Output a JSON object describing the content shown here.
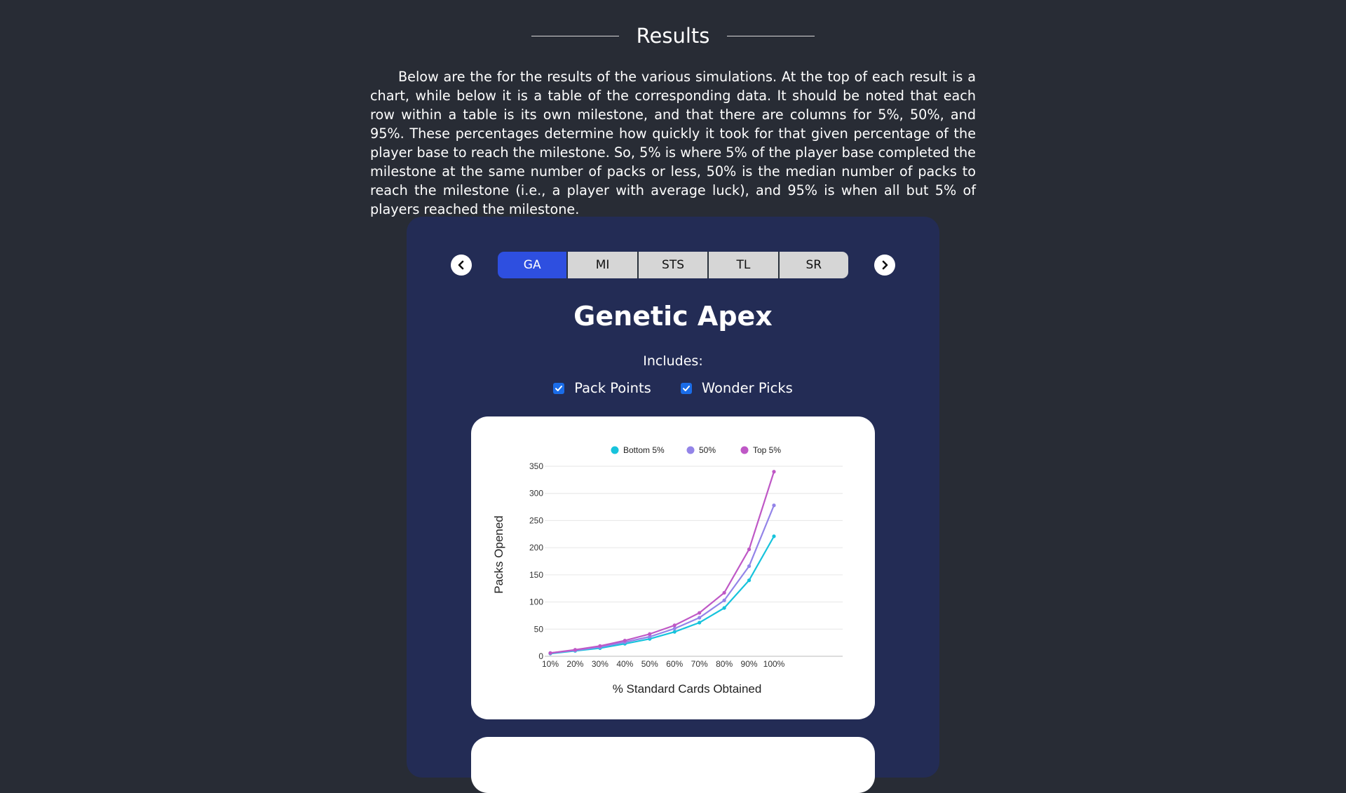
{
  "header": {
    "title": "Results"
  },
  "intro": {
    "text": "Below are the for the results of the various simulations. At the top of each result is a chart, while below it is a table of the corresponding data. It should be noted that each row within a table is its own milestone, and that there are columns for 5%, 50%, and 95%. These percentages determine how quickly it took for that given percentage of the player base to reach the milestone. So, 5% is where 5% of the player base completed the milestone at the same number of packs or less, 50% is the median number of packs to reach the milestone (i.e., a player with average luck), and 95% is when all but 5% of players reached the milestone."
  },
  "nav": {
    "prev_icon": "chevron-left-icon",
    "next_icon": "chevron-right-icon"
  },
  "tabs": [
    {
      "label": "GA",
      "active": true
    },
    {
      "label": "MI",
      "active": false
    },
    {
      "label": "STS",
      "active": false
    },
    {
      "label": "TL",
      "active": false
    },
    {
      "label": "SR",
      "active": false
    }
  ],
  "set": {
    "title": "Genetic Apex",
    "includes_label": "Includes:",
    "options": [
      {
        "label": "Pack Points",
        "checked": true
      },
      {
        "label": "Wonder Picks",
        "checked": true
      }
    ]
  },
  "colors": {
    "background": "#282c35",
    "panel": "#232c55",
    "active_tab": "#2e4fe0",
    "checkbox": "#1a6ce8"
  },
  "chart_data": {
    "type": "line",
    "title": "",
    "xlabel": "% Standard Cards Obtained",
    "ylabel": "Packs Opened",
    "categories": [
      "10%",
      "20%",
      "30%",
      "40%",
      "50%",
      "60%",
      "70%",
      "80%",
      "90%",
      "100%"
    ],
    "ylim": [
      0,
      350
    ],
    "yticks": [
      "0",
      "50",
      "100",
      "150",
      "200",
      "250",
      "300",
      "350"
    ],
    "grid": true,
    "legend_position": "top",
    "series": [
      {
        "name": "Bottom 5%",
        "color": "#17c3dc",
        "values": [
          5,
          10,
          15,
          23,
          32,
          45,
          62,
          89,
          140,
          221
        ]
      },
      {
        "name": "50%",
        "color": "#9384e8",
        "values": [
          6,
          11,
          17,
          26,
          36,
          51,
          71,
          103,
          166,
          278
        ]
      },
      {
        "name": "Top 5%",
        "color": "#bf58c6",
        "values": [
          6,
          12,
          19,
          29,
          41,
          57,
          80,
          117,
          197,
          340
        ]
      }
    ]
  }
}
